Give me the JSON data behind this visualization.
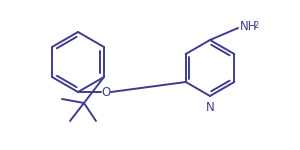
{
  "line_color": "#3d3d8f",
  "bg_color": "#ffffff",
  "line_width": 1.4,
  "n_text": "N",
  "o_text": "O",
  "nh2_text": "NH",
  "sub2": "2"
}
